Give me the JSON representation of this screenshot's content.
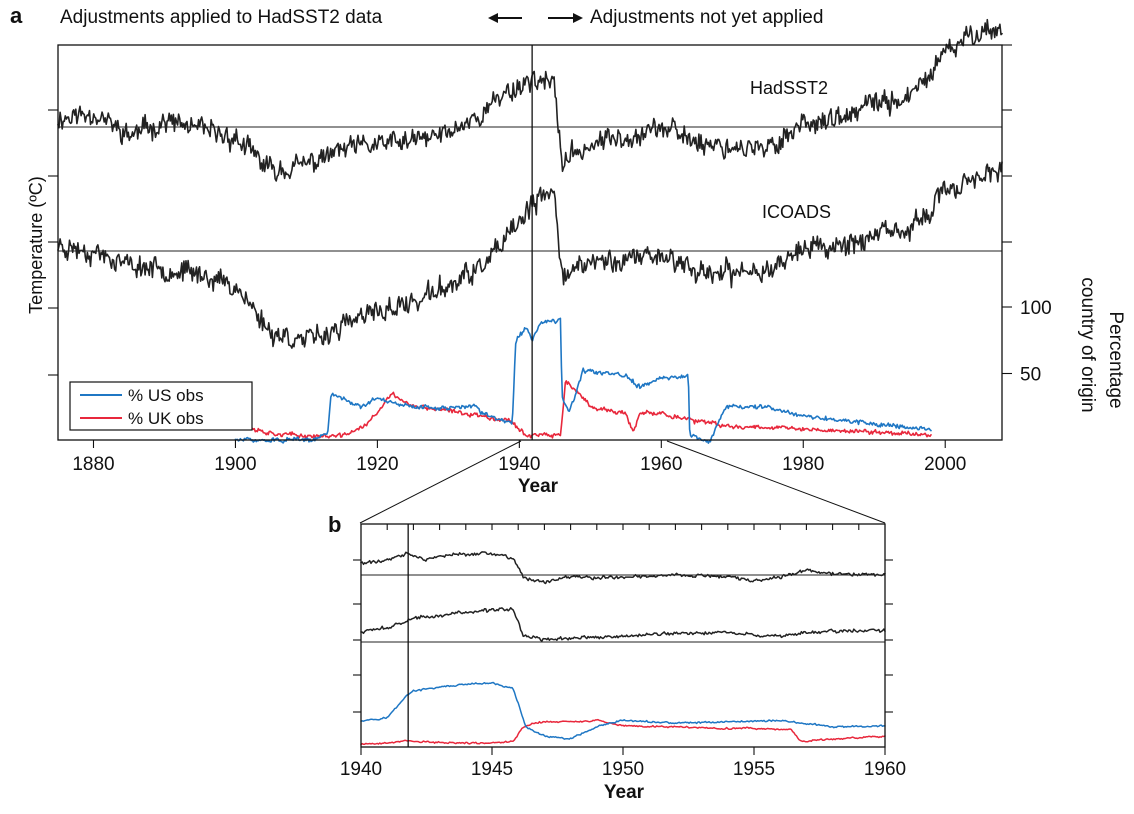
{
  "header": {
    "panel_a_letter": "a",
    "panel_b_letter": "b",
    "left_text": "Adjustments applied to HadSST2 data",
    "right_text": "Adjustments not yet applied"
  },
  "colors": {
    "us": "#1f77c4",
    "uk": "#e8283c",
    "temperature": "#222222"
  },
  "chart_data": [
    {
      "panel": "a",
      "type": "line",
      "xlabel": "Year",
      "ylabel": "Temperature (ºC)",
      "y2label_line1": "Percentage",
      "y2label_line2": "country of origin",
      "xlim": [
        1875,
        2008
      ],
      "xticks": [
        1880,
        1900,
        1920,
        1940,
        1960,
        1980,
        2000
      ],
      "y2lim": [
        0,
        200
      ],
      "y2ticks": [
        50,
        100
      ],
      "divider_year": 1941.8,
      "legend": {
        "position": "lower-left",
        "entries": [
          "% US obs",
          "% UK obs"
        ]
      },
      "series": [
        {
          "name": "HadSST2",
          "x": [
            1875,
            1880,
            1885,
            1890,
            1895,
            1900,
            1905,
            1910,
            1915,
            1920,
            1925,
            1930,
            1935,
            1938,
            1940,
            1942,
            1944,
            1945,
            1946,
            1950,
            1955,
            1960,
            1965,
            1970,
            1975,
            1980,
            1985,
            1990,
            1995,
            2000,
            2005,
            2008
          ],
          "values": [
            0.03,
            0.05,
            -0.03,
            0.02,
            -0.01,
            -0.04,
            -0.15,
            -0.13,
            -0.08,
            -0.06,
            -0.05,
            -0.02,
            0.05,
            0.12,
            0.14,
            0.17,
            0.15,
            0.13,
            -0.12,
            -0.06,
            -0.03,
            0.0,
            -0.05,
            -0.07,
            -0.08,
            0.02,
            0.02,
            0.08,
            0.1,
            0.25,
            0.34,
            0.33
          ]
        },
        {
          "name": "ICOADS",
          "x": [
            1875,
            1880,
            1885,
            1890,
            1895,
            1900,
            1905,
            1910,
            1915,
            1920,
            1925,
            1930,
            1935,
            1938,
            1940,
            1942,
            1944,
            1945,
            1946,
            1950,
            1955,
            1960,
            1965,
            1970,
            1975,
            1980,
            1985,
            1990,
            1995,
            2000,
            2005,
            2008
          ],
          "values": [
            0.02,
            0.0,
            -0.05,
            -0.06,
            -0.08,
            -0.12,
            -0.28,
            -0.31,
            -0.26,
            -0.21,
            -0.18,
            -0.12,
            -0.05,
            0.03,
            0.1,
            0.16,
            0.19,
            0.2,
            -0.08,
            -0.04,
            -0.03,
            -0.01,
            -0.07,
            -0.08,
            -0.06,
            0.01,
            0.02,
            0.05,
            0.07,
            0.2,
            0.27,
            0.26
          ]
        },
        {
          "name": "% US obs",
          "x": [
            1900,
            1911,
            1913,
            1913.5,
            1918,
            1920,
            1922,
            1925,
            1930,
            1934,
            1934.5,
            1939,
            1939.5,
            1941,
            1941.8,
            1943,
            1945.8,
            1946,
            1947,
            1949,
            1955,
            1957,
            1960,
            1963.8,
            1964,
            1966,
            1967,
            1969,
            1975,
            1980,
            1990,
            1998
          ],
          "values": [
            0,
            0,
            5,
            35,
            25,
            32,
            28,
            25,
            24,
            26,
            20,
            13,
            75,
            85,
            75,
            88,
            90,
            32,
            20,
            52,
            48,
            40,
            46,
            48,
            5,
            0,
            0,
            25,
            25,
            18,
            12,
            8
          ]
        },
        {
          "name": "% UK obs",
          "x": [
            1900,
            1905,
            1910,
            1915,
            1918,
            1920,
            1922,
            1925,
            1930,
            1935,
            1939,
            1941,
            1941.8,
            1945,
            1945.8,
            1946.5,
            1950,
            1955,
            1956,
            1957,
            1960,
            1965,
            1970,
            1975,
            1980,
            1990,
            1998
          ],
          "values": [
            12,
            5,
            3,
            3,
            10,
            20,
            35,
            25,
            22,
            18,
            14,
            3,
            4,
            3,
            3,
            45,
            25,
            20,
            5,
            20,
            20,
            14,
            10,
            10,
            8,
            6,
            4
          ]
        }
      ]
    },
    {
      "panel": "b",
      "type": "line",
      "xlabel": "Year",
      "xlim": [
        1940,
        1960
      ],
      "xticks": [
        1940,
        1945,
        1950,
        1955,
        1960
      ],
      "divider_year": 1941.8,
      "series": [
        {
          "name": "HadSST2",
          "x": [
            1940,
            1941,
            1941.8,
            1942.5,
            1943,
            1944,
            1945,
            1945.8,
            1946.2,
            1947,
            1948,
            1950,
            1952,
            1954,
            1955,
            1956,
            1957,
            1958,
            1960
          ],
          "values": [
            0.1,
            0.12,
            0.18,
            0.12,
            0.16,
            0.17,
            0.18,
            0.14,
            -0.02,
            -0.06,
            -0.02,
            -0.02,
            0.0,
            -0.01,
            -0.05,
            -0.02,
            0.04,
            0.01,
            0.0
          ]
        },
        {
          "name": "ICOADS",
          "x": [
            1940,
            1940.5,
            1941,
            1941.8,
            1942,
            1943,
            1944,
            1945,
            1945.8,
            1946.2,
            1947,
            1948,
            1950,
            1952,
            1954,
            1955,
            1956,
            1957,
            1958,
            1960
          ],
          "values": [
            0.08,
            0.1,
            0.12,
            0.18,
            0.2,
            0.22,
            0.25,
            0.26,
            0.28,
            0.05,
            0.02,
            0.03,
            0.05,
            0.07,
            0.08,
            0.06,
            0.05,
            0.08,
            0.09,
            0.1
          ]
        },
        {
          "name": "% US obs",
          "x": [
            1940,
            1941,
            1941.8,
            1942,
            1943,
            1944,
            1945,
            1945.8,
            1946.3,
            1946.8,
            1947,
            1948,
            1949,
            1950,
            1952,
            1954,
            1956,
            1958,
            1960
          ],
          "values": [
            20,
            22,
            40,
            42,
            45,
            47,
            48,
            44,
            15,
            10,
            8,
            6,
            15,
            20,
            18,
            19,
            20,
            15,
            16
          ]
        },
        {
          "name": "% UK obs",
          "x": [
            1940,
            1941,
            1941.8,
            1942,
            1944,
            1945,
            1945.8,
            1946.2,
            1946.6,
            1947,
            1948,
            1949,
            1950,
            1952,
            1954,
            1955,
            1956.4,
            1956.8,
            1958,
            1960
          ],
          "values": [
            2,
            3,
            5,
            4,
            3,
            3,
            4,
            15,
            18,
            19,
            19,
            20,
            16,
            15,
            14,
            14,
            13,
            4,
            6,
            8
          ]
        }
      ]
    }
  ]
}
